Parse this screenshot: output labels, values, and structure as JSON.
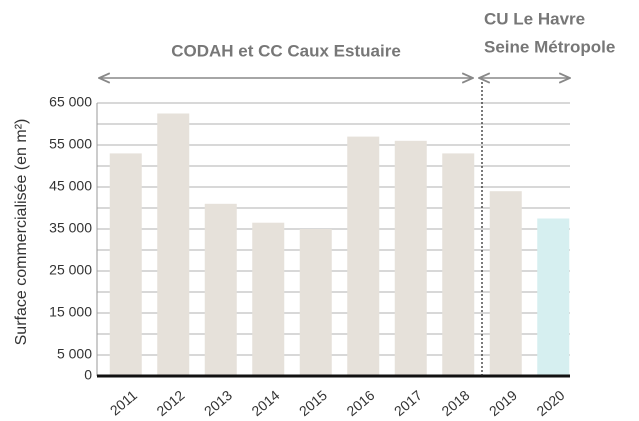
{
  "chart_data": {
    "type": "bar",
    "annotations": [
      "CODAH et CC Caux Estuaire",
      "CU Le Havre",
      "Seine Métropole"
    ],
    "y_label": "Surface commercialisée (en m²)",
    "categories": [
      "2011",
      "2012",
      "2013",
      "2014",
      "2015",
      "2016",
      "2017",
      "2018",
      "2019",
      "2020"
    ],
    "values": [
      53000,
      62500,
      41000,
      36500,
      35000,
      57000,
      56000,
      53000,
      44000,
      37500
    ],
    "colors": [
      "#e6e1da",
      "#e6e1da",
      "#e6e1da",
      "#e6e1da",
      "#e6e1da",
      "#e6e1da",
      "#e6e1da",
      "#e6e1da",
      "#e6e1da",
      "#d6eff0"
    ],
    "ylim": [
      0,
      65000
    ],
    "yticks": [
      0,
      {
        "value": 5000,
        "label": "5 000"
      },
      {
        "value": 15000,
        "label": "15 000"
      },
      {
        "value": 25000,
        "label": "25 000"
      },
      {
        "value": 35000,
        "label": "35 000"
      },
      {
        "value": 45000,
        "label": "45 000"
      },
      {
        "value": 55000,
        "label": "55 000"
      },
      {
        "value": 65000,
        "label": "65 000"
      }
    ],
    "minor_yticks": [
      10000,
      20000,
      30000,
      40000,
      50000,
      60000
    ],
    "grid": true
  }
}
